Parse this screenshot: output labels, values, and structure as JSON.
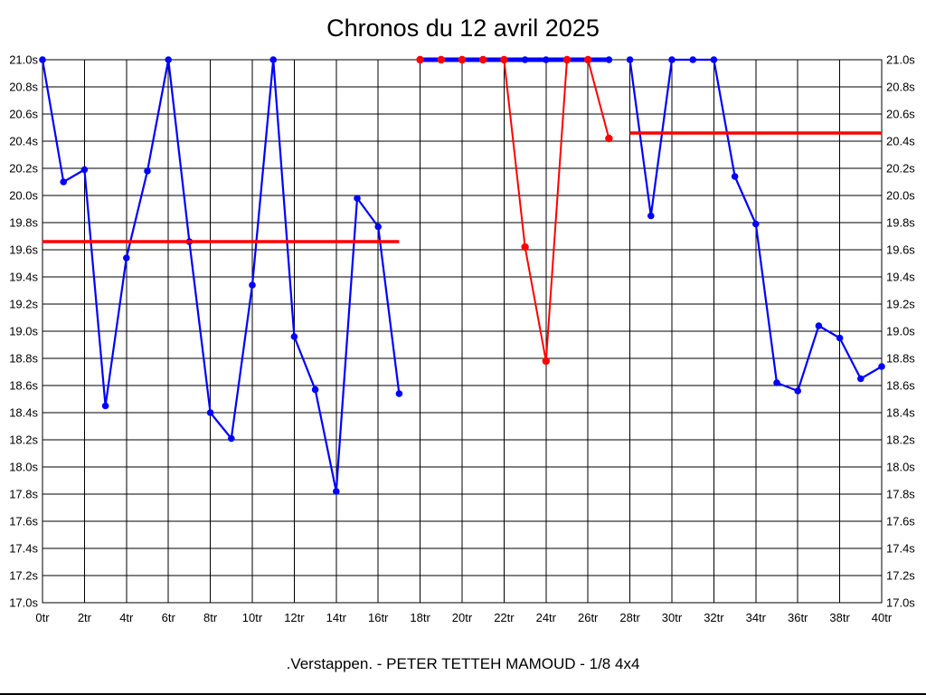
{
  "chart_data": {
    "type": "line",
    "title": "Chronos du 12 avril 2025",
    "caption": ".Verstappen. - PETER TETTEH MAMOUD - 1/8 4x4",
    "x_axis": {
      "unit": "tr",
      "min": 0,
      "max": 40,
      "major_step": 2,
      "tick_labels": [
        "0tr",
        "2tr",
        "4tr",
        "6tr",
        "8tr",
        "10tr",
        "12tr",
        "14tr",
        "16tr",
        "18tr",
        "20tr",
        "22tr",
        "24tr",
        "26tr",
        "28tr",
        "30tr",
        "32tr",
        "34tr",
        "36tr",
        "38tr",
        "40tr"
      ]
    },
    "y_axis": {
      "unit": "s",
      "min": 17.0,
      "max": 21.0,
      "step": 0.2,
      "tick_labels": [
        "21.0s",
        "20.8s",
        "20.6s",
        "20.4s",
        "20.2s",
        "20.0s",
        "19.8s",
        "19.6s",
        "19.4s",
        "19.2s",
        "19.0s",
        "18.8s",
        "18.6s",
        "18.4s",
        "18.2s",
        "18.0s",
        "17.8s",
        "17.6s",
        "17.4s",
        "17.2s",
        "17.0s"
      ],
      "labels_on_both_sides": true
    },
    "grid": true,
    "legend": "none",
    "colors": {
      "series_blue": "#0000ff",
      "series_red": "#ff0000",
      "grid": "#000000",
      "text": "#000000",
      "background": "#ffffff"
    },
    "series": [
      {
        "name": "blue-laps-0-17",
        "color": "#0000ff",
        "line_width": 2.2,
        "marker_radius": 3.8,
        "x": [
          0,
          1,
          2,
          3,
          4,
          5,
          6,
          7,
          8,
          9,
          10,
          11,
          12,
          13,
          14,
          15,
          16,
          17
        ],
        "y": [
          21.0,
          20.1,
          20.19,
          18.45,
          19.54,
          20.18,
          21.0,
          19.66,
          18.4,
          18.21,
          19.34,
          21.0,
          18.96,
          18.57,
          17.82,
          19.98,
          19.77,
          18.54
        ]
      },
      {
        "name": "blue-laps-18-27-plateau",
        "color": "#0000ff",
        "line_width": 5,
        "marker_radius": 3.8,
        "x": [
          18,
          19,
          20,
          21,
          22,
          23,
          24,
          25,
          26,
          27
        ],
        "y": [
          21.0,
          21.0,
          21.0,
          21.0,
          21.0,
          21.0,
          21.0,
          21.0,
          21.0,
          21.0
        ]
      },
      {
        "name": "blue-laps-28-40",
        "color": "#0000ff",
        "line_width": 2.2,
        "marker_radius": 3.8,
        "x": [
          28,
          29,
          30,
          31,
          32,
          33,
          34,
          35,
          36,
          37,
          38,
          39,
          40
        ],
        "y": [
          21.0,
          19.85,
          21.0,
          21.0,
          21.0,
          20.14,
          19.79,
          18.62,
          18.56,
          19.04,
          18.95,
          18.65,
          18.74
        ]
      },
      {
        "name": "red-laps-18-27",
        "color": "#ff0000",
        "line_width": 2,
        "marker_radius": 4.2,
        "line_under_blue": true,
        "x": [
          18,
          19,
          20,
          21,
          22,
          23,
          24,
          25,
          26,
          27
        ],
        "y": [
          21.0,
          21.0,
          21.0,
          21.0,
          21.0,
          19.62,
          18.78,
          21.0,
          21.0,
          20.42
        ]
      }
    ],
    "reference_lines": [
      {
        "name": "red-average-line-1",
        "color": "#ff0000",
        "y": 19.66,
        "x_start": 0,
        "x_end": 17,
        "width": 3.5
      },
      {
        "name": "red-average-line-2",
        "color": "#ff0000",
        "y": 20.46,
        "x_start": 28,
        "x_end": 40,
        "width": 3.5
      }
    ]
  }
}
